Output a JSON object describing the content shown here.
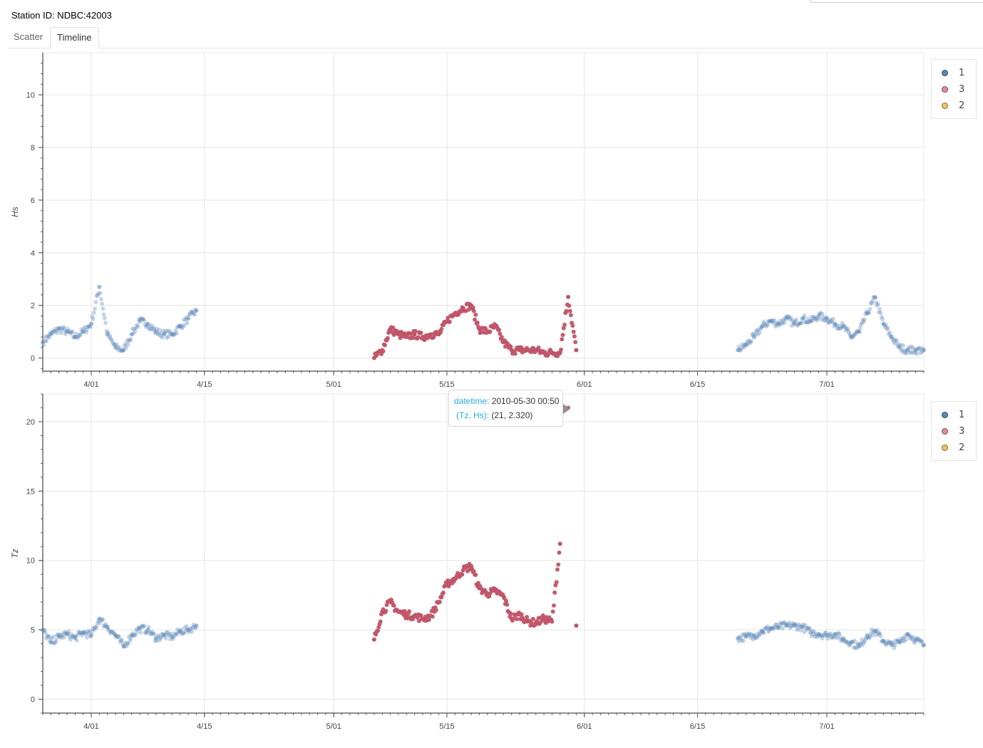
{
  "station_label": "Station ID: NDBC:42003",
  "tabs": [
    {
      "label": "Scatter",
      "active": false
    },
    {
      "label": "Timeline",
      "active": true
    }
  ],
  "legend": [
    {
      "label": "1",
      "color": "#5b88b7"
    },
    {
      "label": "3",
      "color": "#e08ca0"
    },
    {
      "label": "2",
      "color": "#f0c264"
    }
  ],
  "tooltip": {
    "key1": "datetime:",
    "value1": "2010-05-30 00:50",
    "key2": "(Tz, Hs):",
    "value2": "(21, 2.320)"
  },
  "chart_data": [
    {
      "type": "scatter",
      "title": "",
      "xlabel": "",
      "ylabel": "Hs",
      "x_type": "datetime",
      "x_range": [
        "2010-03-26",
        "2010-07-13"
      ],
      "x_ticks": [
        {
          "date": "2010-04-01",
          "label": "4/01"
        },
        {
          "date": "2010-04-15",
          "label": "4/15"
        },
        {
          "date": "2010-05-01",
          "label": "5/01"
        },
        {
          "date": "2010-05-15",
          "label": "5/15"
        },
        {
          "date": "2010-06-01",
          "label": "6/01"
        },
        {
          "date": "2010-06-15",
          "label": "6/15"
        },
        {
          "date": "2010-07-01",
          "label": "7/01"
        }
      ],
      "ylim": [
        -0.5,
        11.6
      ],
      "y_ticks": [
        0,
        2,
        4,
        6,
        8,
        10
      ],
      "grid": true,
      "legend_position": "top-right",
      "series": [
        {
          "name": "1",
          "color": "#5b88b7",
          "x": [
            "2010-03-26",
            "2010-03-27",
            "2010-03-28",
            "2010-03-29",
            "2010-03-30",
            "2010-03-31",
            "2010-04-01",
            "2010-04-02",
            "2010-04-03",
            "2010-04-04",
            "2010-04-05",
            "2010-04-06",
            "2010-04-07",
            "2010-04-08",
            "2010-04-09",
            "2010-04-10",
            "2010-04-11",
            "2010-04-12",
            "2010-04-13",
            "2010-04-14",
            "2010-06-20",
            "2010-06-21",
            "2010-06-22",
            "2010-06-23",
            "2010-06-24",
            "2010-06-25",
            "2010-06-26",
            "2010-06-27",
            "2010-06-28",
            "2010-06-29",
            "2010-06-30",
            "2010-07-01",
            "2010-07-02",
            "2010-07-03",
            "2010-07-04",
            "2010-07-05",
            "2010-07-06",
            "2010-07-07",
            "2010-07-08",
            "2010-07-09",
            "2010-07-10",
            "2010-07-11",
            "2010-07-12",
            "2010-07-13"
          ],
          "values": [
            0.6,
            0.9,
            1.1,
            1.0,
            0.8,
            1.0,
            1.3,
            2.7,
            0.9,
            0.4,
            0.3,
            0.9,
            1.4,
            1.3,
            1.0,
            0.9,
            0.9,
            1.2,
            1.5,
            1.8,
            0.3,
            0.5,
            0.8,
            1.2,
            1.4,
            1.3,
            1.5,
            1.3,
            1.5,
            1.4,
            1.6,
            1.5,
            1.3,
            1.2,
            0.8,
            1.0,
            1.7,
            2.3,
            1.3,
            0.8,
            0.4,
            0.3,
            0.3,
            0.3
          ]
        },
        {
          "name": "3",
          "color": "#c05569",
          "x": [
            "2010-05-06",
            "2010-05-07",
            "2010-05-08",
            "2010-05-09",
            "2010-05-10",
            "2010-05-11",
            "2010-05-12",
            "2010-05-13",
            "2010-05-14",
            "2010-05-15",
            "2010-05-16",
            "2010-05-17",
            "2010-05-18",
            "2010-05-19",
            "2010-05-20",
            "2010-05-21",
            "2010-05-22",
            "2010-05-23",
            "2010-05-24",
            "2010-05-25",
            "2010-05-26",
            "2010-05-27",
            "2010-05-28",
            "2010-05-29",
            "2010-05-30",
            "2010-05-31"
          ],
          "values": [
            0.0,
            0.3,
            1.1,
            0.9,
            0.8,
            0.9,
            0.8,
            0.9,
            0.9,
            1.4,
            1.7,
            1.9,
            2.0,
            1.1,
            1.0,
            1.2,
            0.6,
            0.3,
            0.3,
            0.3,
            0.3,
            0.2,
            0.2,
            0.2,
            2.32,
            0.3
          ]
        }
      ]
    },
    {
      "type": "scatter",
      "title": "",
      "xlabel": "",
      "ylabel": "Tz",
      "x_type": "datetime",
      "x_range": [
        "2010-03-26",
        "2010-07-13"
      ],
      "x_ticks": [
        {
          "date": "2010-04-01",
          "label": "4/01"
        },
        {
          "date": "2010-04-15",
          "label": "4/15"
        },
        {
          "date": "2010-05-01",
          "label": "5/01"
        },
        {
          "date": "2010-05-15",
          "label": "5/15"
        },
        {
          "date": "2010-06-01",
          "label": "6/01"
        },
        {
          "date": "2010-06-15",
          "label": "6/15"
        },
        {
          "date": "2010-07-01",
          "label": "7/01"
        }
      ],
      "ylim": [
        -1.0,
        22.0
      ],
      "y_ticks": [
        0,
        5,
        10,
        15,
        20
      ],
      "grid": true,
      "legend_position": "top-right",
      "series": [
        {
          "name": "1",
          "color": "#5b88b7",
          "x": [
            "2010-03-26",
            "2010-03-27",
            "2010-03-28",
            "2010-03-29",
            "2010-03-30",
            "2010-03-31",
            "2010-04-01",
            "2010-04-02",
            "2010-04-03",
            "2010-04-04",
            "2010-04-05",
            "2010-04-06",
            "2010-04-07",
            "2010-04-08",
            "2010-04-09",
            "2010-04-10",
            "2010-04-11",
            "2010-04-12",
            "2010-04-13",
            "2010-04-14",
            "2010-06-20",
            "2010-06-21",
            "2010-06-22",
            "2010-06-23",
            "2010-06-24",
            "2010-06-25",
            "2010-06-26",
            "2010-06-27",
            "2010-06-28",
            "2010-06-29",
            "2010-06-30",
            "2010-07-01",
            "2010-07-02",
            "2010-07-03",
            "2010-07-04",
            "2010-07-05",
            "2010-07-06",
            "2010-07-07",
            "2010-07-08",
            "2010-07-09",
            "2010-07-10",
            "2010-07-11",
            "2010-07-12",
            "2010-07-13"
          ],
          "values": [
            5.0,
            4.1,
            4.5,
            4.7,
            4.4,
            4.8,
            4.6,
            5.8,
            5.2,
            4.6,
            3.8,
            4.6,
            5.1,
            5.0,
            4.4,
            4.6,
            4.5,
            4.9,
            5.0,
            5.3,
            4.4,
            4.5,
            4.6,
            4.9,
            5.1,
            5.2,
            5.3,
            5.3,
            5.2,
            4.8,
            4.7,
            4.6,
            4.7,
            4.3,
            4.1,
            3.8,
            4.6,
            4.9,
            4.2,
            3.9,
            4.1,
            4.7,
            4.3,
            3.9
          ]
        },
        {
          "name": "3",
          "color": "#c05569",
          "x": [
            "2010-05-06",
            "2010-05-07",
            "2010-05-08",
            "2010-05-09",
            "2010-05-10",
            "2010-05-11",
            "2010-05-12",
            "2010-05-13",
            "2010-05-14",
            "2010-05-15",
            "2010-05-16",
            "2010-05-17",
            "2010-05-18",
            "2010-05-19",
            "2010-05-20",
            "2010-05-21",
            "2010-05-22",
            "2010-05-23",
            "2010-05-24",
            "2010-05-25",
            "2010-05-26",
            "2010-05-27",
            "2010-05-28",
            "2010-05-29",
            "2010-05-30",
            "2010-05-31"
          ],
          "values": [
            4.3,
            6.3,
            7.0,
            6.3,
            6.1,
            6.0,
            5.8,
            6.0,
            7.0,
            8.3,
            8.7,
            9.3,
            9.6,
            8.0,
            7.6,
            7.8,
            7.4,
            5.8,
            6.1,
            5.6,
            5.5,
            5.8,
            5.6,
            11.2,
            21.0,
            5.3
          ]
        }
      ]
    }
  ]
}
